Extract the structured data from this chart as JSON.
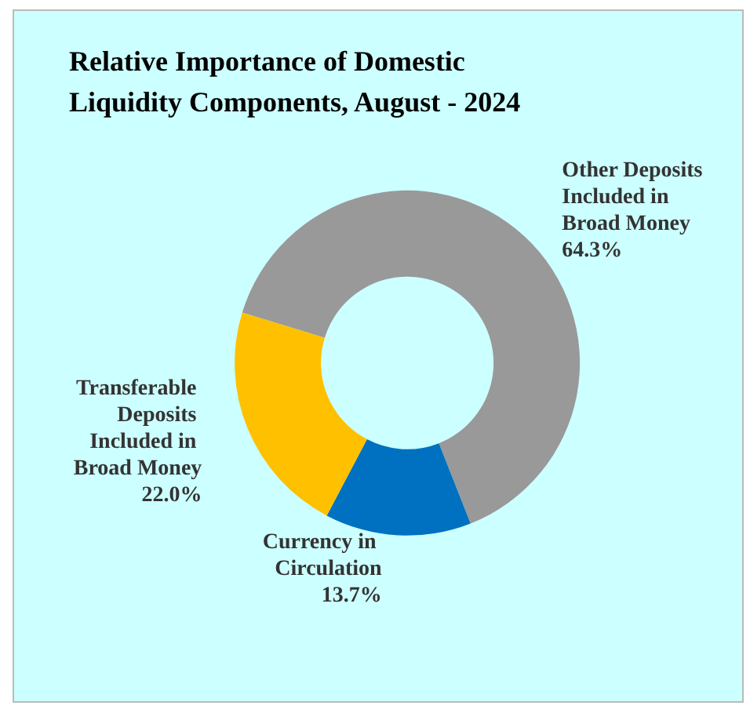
{
  "chart_data": {
    "type": "donut",
    "title": "Relative Importance of Domestic Liquidity Components, August - 2024",
    "categories": [
      "Other Deposits Included in Broad Money",
      "Currency in Circulation",
      "Transferable Deposits Included in Broad Money"
    ],
    "values": [
      64.3,
      13.7,
      22.0
    ],
    "colors": [
      "#999999",
      "#0070c0",
      "#ffc000"
    ],
    "value_labels": [
      "64.3%",
      "13.7%",
      "22.0%"
    ],
    "legend": false
  }
}
